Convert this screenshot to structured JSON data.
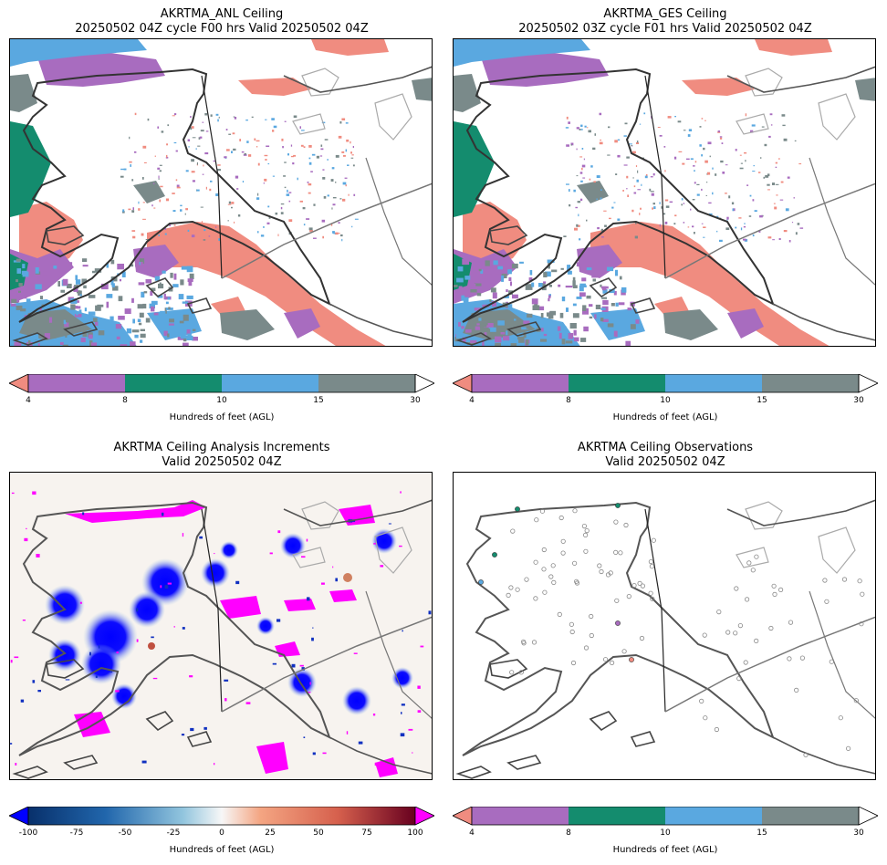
{
  "panels": [
    {
      "id": "anl",
      "title1": "AKRTMA_ANL Ceiling",
      "title2": "20250502 04Z cycle F00 hrs Valid 20250502 04Z",
      "kind": "ceiling"
    },
    {
      "id": "ges",
      "title1": "AKRTMA_GES Ceiling",
      "title2": "20250502 03Z cycle F01 hrs Valid 20250502 04Z",
      "kind": "ceiling"
    },
    {
      "id": "inc",
      "title1": "AKRTMA Ceiling Analysis Increments",
      "title2": "Valid 20250502 04Z",
      "kind": "increment"
    },
    {
      "id": "obs",
      "title1": "AKRTMA Ceiling Observations",
      "title2": "Valid 20250502 04Z",
      "kind": "obs"
    }
  ],
  "ceiling_colorbar": {
    "label": "Hundreds of feet (AGL)",
    "ticks": [
      "4",
      "8",
      "10",
      "15",
      "30"
    ],
    "colors": {
      "under": "#f08c80",
      "c4_8": "#a86cbf",
      "c8_10": "#148c6e",
      "c10_15": "#5aa8e0",
      "c15_30": "#7a8a8a",
      "over": "#ffffff"
    }
  },
  "increment_colorbar": {
    "label": "Hundreds of feet (AGL)",
    "ticks": [
      "-100",
      "-75",
      "-50",
      "-25",
      "0",
      "25",
      "50",
      "75",
      "100"
    ],
    "under_color": "#0000ff",
    "over_color": "#ff00ff"
  },
  "chart_data": {
    "type": "heatmap",
    "variable": "Ceiling",
    "units": "Hundreds of feet (AGL)",
    "ceiling_levels": [
      4,
      8,
      10,
      15,
      30
    ],
    "increment_range": [
      -100,
      100
    ],
    "increment_ticks": [
      -100,
      -75,
      -50,
      -25,
      0,
      25,
      50,
      75,
      100
    ]
  }
}
